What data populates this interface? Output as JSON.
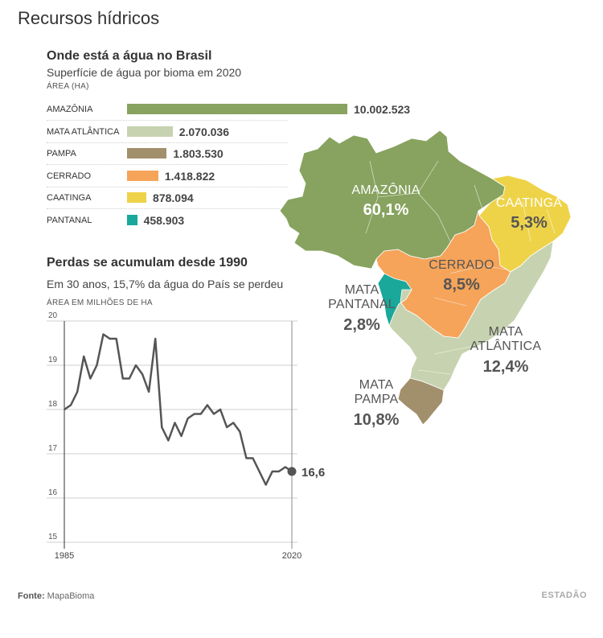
{
  "header": {
    "title": "Recursos hídricos"
  },
  "section1": {
    "title": "Onde está a água no Brasil",
    "subtitle": "Superfície de água por bioma em 2020",
    "unit": "ÁREA (HA)"
  },
  "section2": {
    "title": "Perdas se acumulam desde 1990",
    "subtitle": "Em 30 anos, 15,7% da água do País se perdeu",
    "unit": "ÁREA EM MILHÕES DE HA",
    "end_label": "16,6"
  },
  "map_labels": [
    {
      "name": "AMAZÔNIA",
      "pct": "60,1%",
      "name_color": "#ffffff",
      "pct_color": "#ffffff"
    },
    {
      "name": "CAATINGA",
      "pct": "5,3%",
      "name_color": "#ffffff",
      "pct_color": "#555555"
    },
    {
      "name": "CERRADO",
      "pct": "8,5%",
      "name_color": "#555555",
      "pct_color": "#555555"
    },
    {
      "name": "MATA\nPANTANAL",
      "pct": "2,8%",
      "name_color": "#555555",
      "pct_color": "#555555"
    },
    {
      "name": "MATA\nATLÂNTICA",
      "pct": "12,4%",
      "name_color": "#555555",
      "pct_color": "#555555"
    },
    {
      "name": "MATA\nPAMPA",
      "pct": "10,8%",
      "name_color": "#555555",
      "pct_color": "#555555"
    }
  ],
  "footer": {
    "source_label": "Fonte:",
    "source_value": "MapaBioma",
    "brand": "ESTADÃO"
  },
  "chart_data": [
    {
      "type": "bar",
      "orientation": "horizontal",
      "categories": [
        "AMAZÔNIA",
        "MATA ATLÂNTICA",
        "PAMPA",
        "CERRADO",
        "CAATINGA",
        "PANTANAL"
      ],
      "values": [
        10002523,
        2070036,
        1803530,
        1418822,
        878094,
        458903
      ],
      "value_labels": [
        "10.002.523",
        "2.070.036",
        "1.803.530",
        "1.418.822",
        "878.094",
        "458.903"
      ],
      "colors": [
        "#87a35f",
        "#c7d3b0",
        "#a28f6c",
        "#f5a45a",
        "#eed348",
        "#1aa89a"
      ],
      "title": "Onde está a água no Brasil",
      "ylabel": "ÁREA (HA)"
    },
    {
      "type": "line",
      "title": "Perdas se acumulam desde 1990",
      "ylabel": "ÁREA EM MILHÕES DE HA",
      "x": [
        1985,
        1986,
        1987,
        1988,
        1989,
        1990,
        1991,
        1992,
        1993,
        1994,
        1995,
        1996,
        1997,
        1998,
        1999,
        2000,
        2001,
        2002,
        2003,
        2004,
        2005,
        2006,
        2007,
        2008,
        2009,
        2010,
        2011,
        2012,
        2013,
        2014,
        2015,
        2016,
        2017,
        2018,
        2019,
        2020
      ],
      "y": [
        18.0,
        18.1,
        18.4,
        19.2,
        18.7,
        19.0,
        19.7,
        19.6,
        19.6,
        18.7,
        18.7,
        19.0,
        18.8,
        18.4,
        19.6,
        17.6,
        17.3,
        17.7,
        17.4,
        17.8,
        17.9,
        17.9,
        18.1,
        17.9,
        18.0,
        17.6,
        17.7,
        17.5,
        16.9,
        16.9,
        16.6,
        16.3,
        16.6,
        16.6,
        16.7,
        16.6
      ],
      "xlim": [
        1985,
        2020
      ],
      "ylim": [
        15,
        20
      ],
      "yticks": [
        15,
        16,
        17,
        18,
        19,
        20
      ],
      "xtick_labels": [
        "1985",
        "2020"
      ],
      "line_color": "#555555",
      "grid": true
    }
  ]
}
